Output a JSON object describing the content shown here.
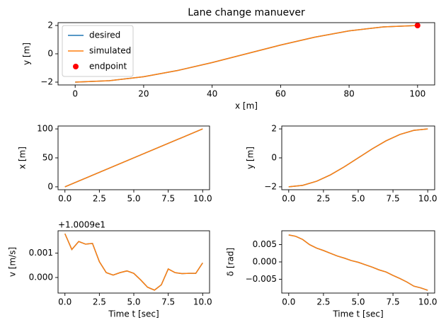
{
  "chart_data": [
    {
      "type": "line",
      "title": "Lane change manuever",
      "xlabel": "x [m]",
      "ylabel": "y [m]",
      "xlim": [
        -5,
        105
      ],
      "ylim": [
        -2.2,
        2.2
      ],
      "xticks": [
        0,
        20,
        40,
        60,
        80,
        100
      ],
      "yticks": [
        {
          "value": -2,
          "label": "−2"
        },
        0,
        2
      ],
      "legend": "upper left",
      "series": [
        {
          "name": "desired",
          "color": "#1f77b4",
          "style": "line",
          "x": [
            0,
            10,
            20,
            30,
            40,
            50,
            60,
            70,
            80,
            90,
            100
          ],
          "values": [
            -2,
            -1.902,
            -1.618,
            -1.176,
            -0.618,
            0,
            0.618,
            1.176,
            1.618,
            1.902,
            2
          ]
        },
        {
          "name": "simulated",
          "color": "#ff7f0e",
          "style": "line",
          "x": [
            0,
            10,
            20,
            30,
            40,
            50,
            60,
            70,
            80,
            90,
            100
          ],
          "values": [
            -2,
            -1.902,
            -1.618,
            -1.176,
            -0.618,
            0,
            0.618,
            1.176,
            1.618,
            1.902,
            2
          ]
        },
        {
          "name": "endpoint",
          "color": "#ff0000",
          "style": "marker",
          "x": [
            100
          ],
          "values": [
            2
          ]
        }
      ]
    },
    {
      "type": "line",
      "ylabel": "x [m]",
      "xlim": [
        -0.5,
        10.5
      ],
      "ylim": [
        -5,
        105
      ],
      "xticks": [
        {
          "value": 0,
          "label": "0.0"
        },
        {
          "value": 2.5,
          "label": "2.5"
        },
        {
          "value": 5,
          "label": "5.0"
        },
        {
          "value": 7.5,
          "label": "7.5"
        },
        {
          "value": 10,
          "label": "10.0"
        }
      ],
      "yticks": [
        0,
        50,
        100
      ],
      "series": [
        {
          "color": "#1f77b4",
          "style": "line",
          "x": [
            0,
            10
          ],
          "values": [
            0,
            100
          ]
        },
        {
          "color": "#ff7f0e",
          "style": "line",
          "x": [
            0,
            10
          ],
          "values": [
            0,
            100
          ]
        }
      ]
    },
    {
      "type": "line",
      "ylabel": "y [m]",
      "xlim": [
        -0.5,
        10.5
      ],
      "ylim": [
        -2.2,
        2.2
      ],
      "xticks": [
        {
          "value": 0,
          "label": "0.0"
        },
        {
          "value": 2.5,
          "label": "2.5"
        },
        {
          "value": 5,
          "label": "5.0"
        },
        {
          "value": 7.5,
          "label": "7.5"
        },
        {
          "value": 10,
          "label": "10.0"
        }
      ],
      "yticks": [
        {
          "value": -2,
          "label": "−2"
        },
        0,
        2
      ],
      "series": [
        {
          "color": "#1f77b4",
          "style": "line",
          "x": [
            0,
            1,
            2,
            3,
            4,
            5,
            6,
            7,
            8,
            9,
            10
          ],
          "values": [
            -2,
            -1.902,
            -1.618,
            -1.176,
            -0.618,
            0,
            0.618,
            1.176,
            1.618,
            1.902,
            2
          ]
        },
        {
          "color": "#ff7f0e",
          "style": "line",
          "x": [
            0,
            1,
            2,
            3,
            4,
            5,
            6,
            7,
            8,
            9,
            10
          ],
          "values": [
            -2,
            -1.902,
            -1.618,
            -1.176,
            -0.618,
            0,
            0.618,
            1.176,
            1.618,
            1.902,
            2
          ]
        }
      ]
    },
    {
      "type": "line",
      "ylabel": "v [m/s]",
      "xlabel": "Time t [sec]",
      "offset_text": "+1.0009e1",
      "xlim": [
        -0.5,
        10.5
      ],
      "ylim": [
        -0.00064,
        0.00192
      ],
      "xticks": [
        {
          "value": 0,
          "label": "0.0"
        },
        {
          "value": 2.5,
          "label": "2.5"
        },
        {
          "value": 5,
          "label": "5.0"
        },
        {
          "value": 7.5,
          "label": "7.5"
        },
        {
          "value": 10,
          "label": "10.0"
        }
      ],
      "yticks": [
        {
          "value": 0,
          "label": "0.000"
        },
        {
          "value": 0.001,
          "label": "0.001"
        }
      ],
      "series": [
        {
          "color": "#1f77b4",
          "style": "line",
          "x": [
            0,
            0.5,
            1,
            1.5,
            2,
            2.5,
            3,
            3.5,
            4,
            4.5,
            5,
            5.5,
            6,
            6.5,
            7,
            7.5,
            8,
            8.5,
            9,
            9.5,
            10
          ],
          "values": [
            0.0018,
            0.00115,
            0.00148,
            0.00137,
            0.0014,
            0.00065,
            0.0002,
            0.0001,
            0.0002,
            0.00027,
            0.00017,
            -0.0001,
            -0.0004,
            -0.00052,
            -0.0003,
            0.00035,
            0.0002,
            0.00016,
            0.00017,
            0.00017,
            0.0006
          ]
        },
        {
          "color": "#ff7f0e",
          "style": "line",
          "x": [
            0,
            0.5,
            1,
            1.5,
            2,
            2.5,
            3,
            3.5,
            4,
            4.5,
            5,
            5.5,
            6,
            6.5,
            7,
            7.5,
            8,
            8.5,
            9,
            9.5,
            10
          ],
          "values": [
            0.0018,
            0.00115,
            0.00148,
            0.00137,
            0.0014,
            0.00065,
            0.0002,
            0.0001,
            0.0002,
            0.00027,
            0.00017,
            -0.0001,
            -0.0004,
            -0.00052,
            -0.0003,
            0.00035,
            0.0002,
            0.00016,
            0.00017,
            0.00017,
            0.0006
          ]
        }
      ]
    },
    {
      "type": "line",
      "ylabel": "δ [rad]",
      "xlabel": "Time t [sec]",
      "xlim": [
        -0.5,
        10.5
      ],
      "ylim": [
        -0.009,
        0.009
      ],
      "xticks": [
        {
          "value": 0,
          "label": "0.0"
        },
        {
          "value": 2.5,
          "label": "2.5"
        },
        {
          "value": 5,
          "label": "5.0"
        },
        {
          "value": 7.5,
          "label": "7.5"
        },
        {
          "value": 10,
          "label": "10.0"
        }
      ],
      "yticks": [
        {
          "value": -0.005,
          "label": "−0.005"
        },
        {
          "value": 0,
          "label": "0.000"
        },
        {
          "value": 0.005,
          "label": "0.005"
        }
      ],
      "series": [
        {
          "color": "#1f77b4",
          "style": "line",
          "x": [
            0,
            0.5,
            1,
            1.5,
            2,
            2.5,
            3,
            3.5,
            4,
            4.5,
            5,
            5.5,
            6,
            6.5,
            7,
            7.5,
            8,
            8.5,
            9,
            9.5,
            10
          ],
          "values": [
            0.0078,
            0.0074,
            0.0065,
            0.005,
            0.004,
            0.0033,
            0.0025,
            0.0017,
            0.0011,
            0.0004,
            -0.0001,
            -0.0008,
            -0.0015,
            -0.0023,
            -0.0029,
            -0.0039,
            -0.0048,
            -0.0058,
            -0.007,
            -0.0075,
            -0.0082
          ]
        },
        {
          "color": "#ff7f0e",
          "style": "line",
          "x": [
            0,
            0.5,
            1,
            1.5,
            2,
            2.5,
            3,
            3.5,
            4,
            4.5,
            5,
            5.5,
            6,
            6.5,
            7,
            7.5,
            8,
            8.5,
            9,
            9.5,
            10
          ],
          "values": [
            0.0078,
            0.0074,
            0.0065,
            0.005,
            0.004,
            0.0033,
            0.0025,
            0.0017,
            0.0011,
            0.0004,
            -0.0001,
            -0.0008,
            -0.0015,
            -0.0023,
            -0.0029,
            -0.0039,
            -0.0048,
            -0.0058,
            -0.007,
            -0.0075,
            -0.0082
          ]
        }
      ]
    }
  ]
}
